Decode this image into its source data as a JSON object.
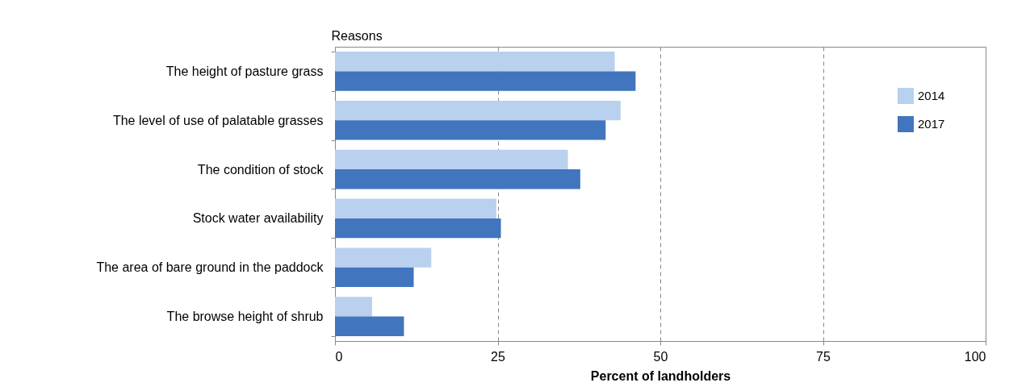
{
  "chart_data": {
    "type": "bar",
    "orientation": "horizontal",
    "ylabel": "Reasons",
    "xlabel": "Percent of landholders",
    "categories": [
      "The height of pasture grass",
      "The level of use of palatable grasses",
      "The condition of stock",
      "Stock water availability",
      "The area of bare ground in the paddock",
      "The browse height of shrub"
    ],
    "series": [
      {
        "name": "2014",
        "color": "#b9d0ee",
        "values": [
          43.0,
          43.9,
          35.8,
          24.8,
          14.8,
          5.7
        ]
      },
      {
        "name": "2017",
        "color": "#4175be",
        "values": [
          46.2,
          41.6,
          37.7,
          25.5,
          12.1,
          10.6
        ]
      }
    ],
    "xlim": [
      0,
      100
    ],
    "xticks": [
      0,
      25,
      50,
      75,
      100
    ],
    "grid": "x",
    "legend": "top right"
  }
}
